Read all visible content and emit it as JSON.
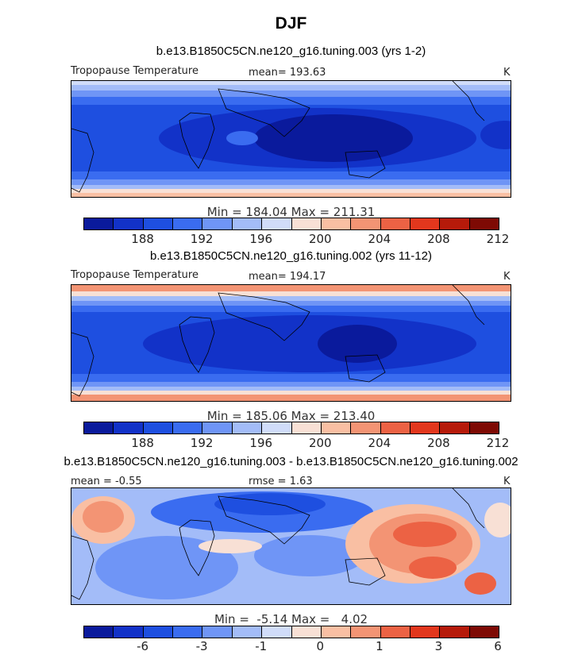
{
  "title": "DJF",
  "palette": [
    "#0a1a9c",
    "#1232c8",
    "#1e4fe0",
    "#3a6cf0",
    "#6f95f6",
    "#a3bcf8",
    "#d0dcf9",
    "#f8e0d5",
    "#f9bfa3",
    "#f39474",
    "#ec6244",
    "#e2371d",
    "#b61a0a",
    "#7e0a04"
  ],
  "panels": [
    {
      "title": "b.e13.B1850C5CN.ne120_g16.tuning.003 (yrs 1-2)",
      "variable": "Tropopause Temperature",
      "stat": "mean= 193.63",
      "units": "K",
      "minmax": "Min = 184.04 Max = 211.31",
      "ticks": [
        "188",
        "192",
        "196",
        "200",
        "204",
        "208",
        "212"
      ]
    },
    {
      "title": "b.e13.B1850C5CN.ne120_g16.tuning.002 (yrs 11-12)",
      "variable": "Tropopause Temperature",
      "stat": "mean= 194.17",
      "units": "K",
      "minmax": "Min = 185.06 Max = 213.40",
      "ticks": [
        "188",
        "192",
        "196",
        "200",
        "204",
        "208",
        "212"
      ]
    },
    {
      "title": "b.e13.B1850C5CN.ne120_g16.tuning.003 - b.e13.B1850C5CN.ne120_g16.tuning.002",
      "mean": "mean =   -0.55",
      "rmse": "rmse =   1.63",
      "units": "K",
      "minmax": "Min =  -5.14 Max =   4.02",
      "ticks": [
        "-6",
        "-3",
        "-1",
        "0",
        "1",
        "3",
        "6"
      ]
    }
  ]
}
